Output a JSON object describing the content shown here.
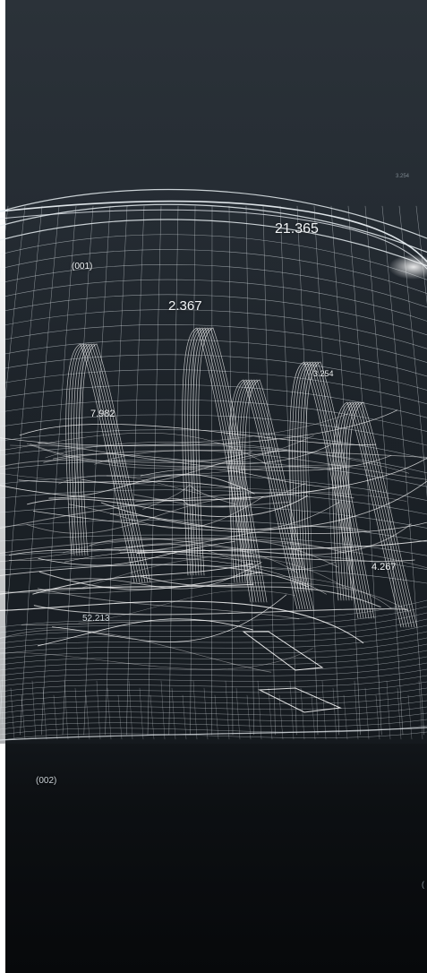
{
  "labels": {
    "label_21365": "21.365",
    "label_001": "(001)",
    "label_2367": "2.367",
    "label_3254": "3.254",
    "label_7982": "7.982",
    "label_4267": "4.267",
    "label_52213": "52.213",
    "label_002": "(002)",
    "label_3254_faint": "3.254",
    "label_paren": "("
  },
  "colors": {
    "background_top": "#2b3239",
    "background_bottom": "#07090b",
    "wire": "#e8eef2",
    "label": "#f2f5f7"
  }
}
